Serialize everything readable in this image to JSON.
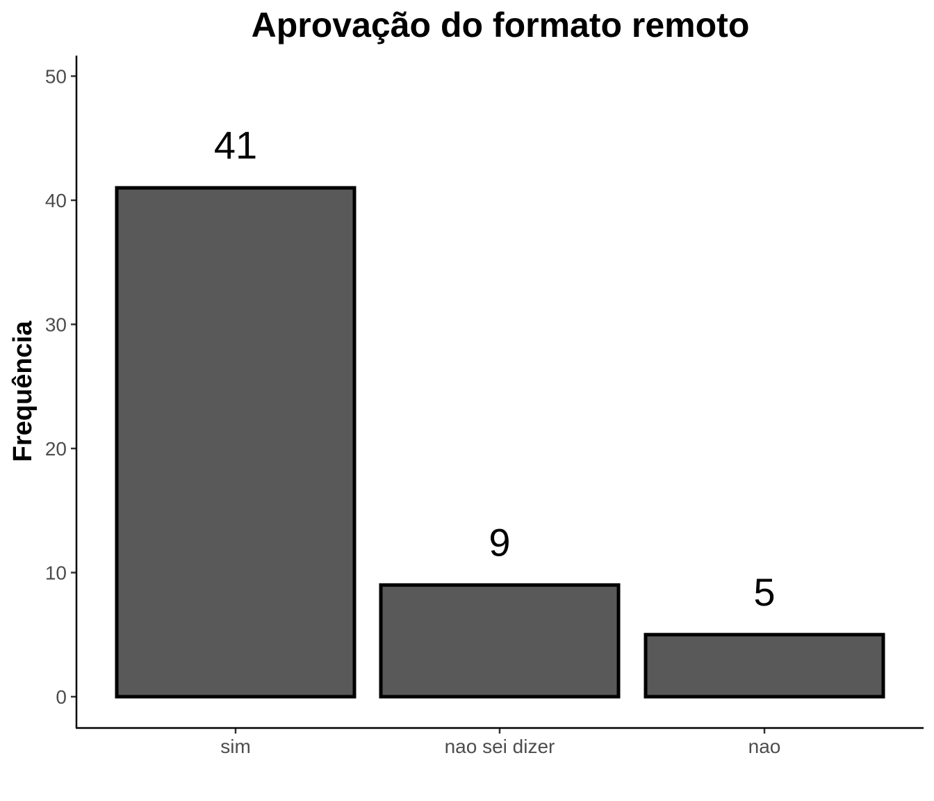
{
  "chart_data": {
    "type": "bar",
    "title": "Aprovação do formato remoto",
    "xlabel": "",
    "ylabel": "Frequência",
    "categories": [
      "sim",
      "nao sei dizer",
      "nao"
    ],
    "values": [
      41,
      9,
      5
    ],
    "data_labels": [
      "41",
      "9",
      "5"
    ],
    "yticks": [
      0,
      10,
      20,
      30,
      40,
      50
    ],
    "ytick_labels": [
      "0",
      "10",
      "20",
      "30",
      "40",
      "50"
    ],
    "ylim": [
      0,
      50
    ],
    "grid": false,
    "legend": "none",
    "colors": {
      "bar_fill": "#595959",
      "bar_stroke": "#000000"
    }
  }
}
